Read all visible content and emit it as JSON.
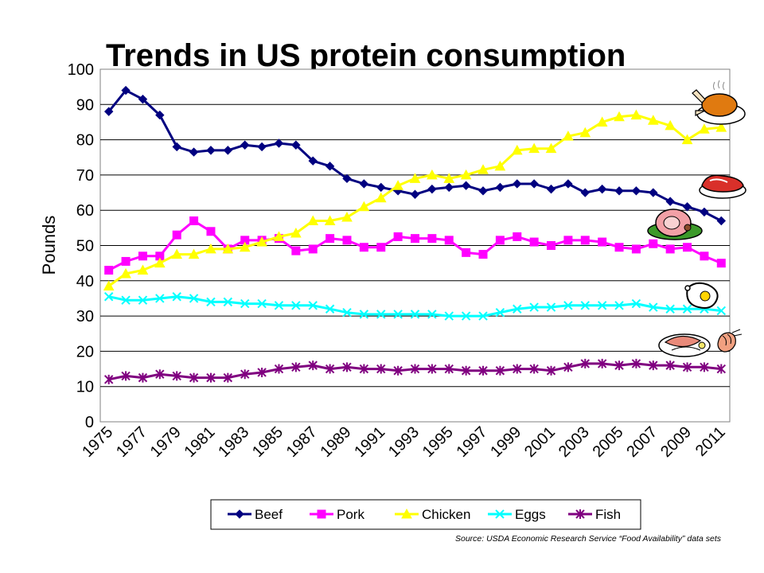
{
  "chart_data": {
    "type": "line",
    "title": "Trends in US protein consumption",
    "ylabel": "Pounds",
    "xlabel": "",
    "ylim": [
      0,
      100
    ],
    "yticks": [
      0,
      10,
      20,
      30,
      40,
      50,
      60,
      70,
      80,
      90,
      100
    ],
    "xtick_labels": [
      "1975",
      "1977",
      "1979",
      "1981",
      "1983",
      "1985",
      "1987",
      "1989",
      "1991",
      "1993",
      "1995",
      "1997",
      "1999",
      "2001",
      "2003",
      "2005",
      "2007",
      "2009",
      "2011"
    ],
    "x": [
      1975,
      1976,
      1977,
      1978,
      1979,
      1980,
      1981,
      1982,
      1983,
      1984,
      1985,
      1986,
      1987,
      1988,
      1989,
      1990,
      1991,
      1992,
      1993,
      1994,
      1995,
      1996,
      1997,
      1998,
      1999,
      2000,
      2001,
      2002,
      2003,
      2004,
      2005,
      2006,
      2007,
      2008,
      2009,
      2010,
      2011
    ],
    "grid": "horizontal",
    "legend_position": "bottom",
    "series": [
      {
        "name": "Beef",
        "color": "#000080",
        "marker": "diamond",
        "values": [
          88,
          94,
          91.5,
          87,
          78,
          76.5,
          77,
          77,
          78.5,
          78,
          79,
          78.5,
          74,
          72.5,
          69,
          67.5,
          66.5,
          65.5,
          64.5,
          66,
          66.5,
          67,
          65.5,
          66.5,
          67.5,
          67.5,
          66,
          67.5,
          65,
          66,
          65.5,
          65.5,
          65,
          62.5,
          61,
          59.5,
          57
        ]
      },
      {
        "name": "Pork",
        "color": "#ff00ff",
        "marker": "square",
        "values": [
          43,
          45.5,
          47,
          47,
          53,
          57,
          54,
          49,
          51.5,
          51.5,
          52,
          48.5,
          49,
          52,
          51.5,
          49.5,
          49.5,
          52.5,
          52,
          52,
          51.5,
          48,
          47.5,
          51.5,
          52.5,
          51,
          50,
          51.5,
          51.5,
          51,
          49.5,
          49,
          50.5,
          49,
          49.5,
          47,
          45
        ]
      },
      {
        "name": "Chicken",
        "color": "#ffff00",
        "marker": "triangle",
        "values": [
          38.5,
          42,
          43,
          45,
          47.5,
          47.5,
          49,
          49,
          49.5,
          51,
          52.5,
          53.5,
          57,
          57,
          58,
          61,
          63.5,
          67,
          69,
          70,
          69,
          70,
          71.5,
          72.5,
          77,
          77.5,
          77.5,
          81,
          82,
          85,
          86.5,
          87,
          85.5,
          84,
          80,
          83,
          83.5
        ]
      },
      {
        "name": "Eggs",
        "color": "#00ffff",
        "marker": "x",
        "values": [
          35.5,
          34.5,
          34.5,
          35,
          35.5,
          35,
          34,
          34,
          33.5,
          33.5,
          33,
          33,
          33,
          32,
          31,
          30.5,
          30.5,
          30.5,
          30.5,
          30.5,
          30,
          30,
          30,
          31,
          32,
          32.5,
          32.5,
          33,
          33,
          33,
          33,
          33.5,
          32.5,
          32,
          32,
          32,
          31.5
        ]
      },
      {
        "name": "Fish",
        "color": "#800080",
        "marker": "star",
        "values": [
          12,
          13,
          12.5,
          13.5,
          13,
          12.5,
          12.5,
          12.5,
          13.5,
          14,
          15,
          15.5,
          16,
          15,
          15.5,
          15,
          15,
          14.5,
          15,
          15,
          15,
          14.5,
          14.5,
          14.5,
          15,
          15,
          14.5,
          15.5,
          16.5,
          16.5,
          16,
          16.5,
          16,
          16,
          15.5,
          15.5,
          15
        ]
      }
    ],
    "annotation": "Source:  USDA Economic Research Service “Food Availability” data sets"
  }
}
